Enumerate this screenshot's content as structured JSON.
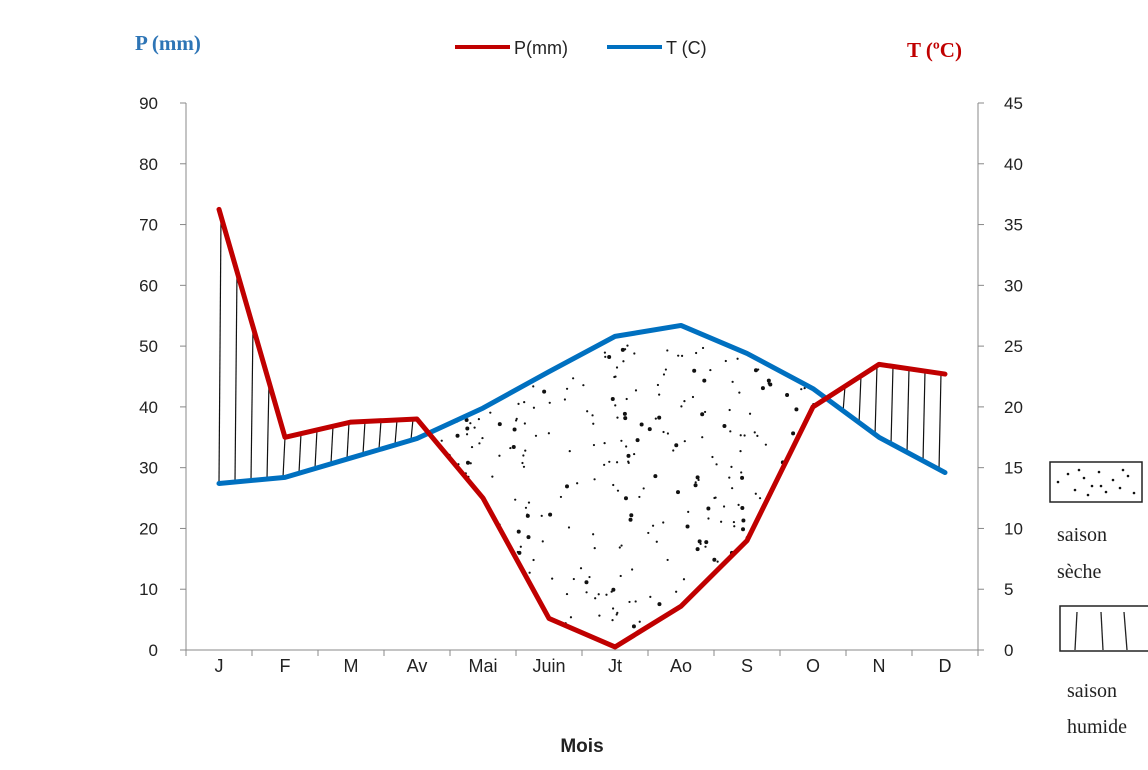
{
  "chart_data": {
    "type": "line",
    "left_axis_title": "P (mm)",
    "right_axis_title": "T (ºC)",
    "xlabel": "Mois",
    "categories": [
      "J",
      "F",
      "M",
      "Av",
      "Mai",
      "Juin",
      "Jt",
      "Ao",
      "S",
      "O",
      "N",
      "D"
    ],
    "left_ylim": [
      0,
      90
    ],
    "left_ticks": [
      0,
      10,
      20,
      30,
      40,
      50,
      60,
      70,
      80,
      90
    ],
    "right_ylim": [
      0,
      45
    ],
    "right_ticks": [
      0,
      5,
      10,
      15,
      20,
      25,
      30,
      35,
      40,
      45
    ],
    "series": [
      {
        "name": "P(mm)",
        "axis": "left",
        "color": "#c00000",
        "values": [
          72.5,
          35,
          37.5,
          38,
          25,
          5.2,
          0.5,
          7.2,
          18,
          40,
          47,
          45.4
        ]
      },
      {
        "name": "T (C)",
        "axis": "right",
        "color": "#0070c0",
        "values": [
          13.7,
          14.2,
          15.8,
          17.4,
          19.9,
          22.9,
          25.8,
          26.7,
          24.4,
          21.5,
          17.5,
          14.6
        ]
      }
    ],
    "legend_position": "top-center",
    "shading": {
      "dry_season": "stippled area where P < 2T",
      "wet_season": "vertical hatching where P > 2T"
    }
  },
  "key": {
    "dry_line1": "saison",
    "dry_line2": "sèche",
    "wet_line1": "saison",
    "wet_line2": "humide"
  }
}
